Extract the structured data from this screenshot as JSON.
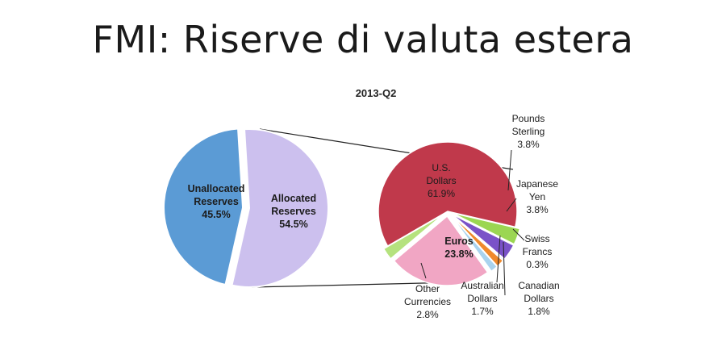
{
  "title": "FMI: Riserve di valuta estera",
  "chart_data": {
    "type": "pie",
    "subtitle": "2013-Q2",
    "main_pie": {
      "slices": [
        {
          "label_lines": [
            "Unallocated",
            "Reserves",
            "45.5%"
          ],
          "value": 45.5,
          "color": "#5b9bd5"
        },
        {
          "label_lines": [
            "Allocated",
            "Reserves",
            "54.5%"
          ],
          "value": 54.5,
          "color": "#ccc0ee"
        }
      ]
    },
    "detail_pie": {
      "slices": [
        {
          "label_lines": [
            "U.S.",
            "Dollars",
            "61.9%"
          ],
          "value": 61.9,
          "color": "#c0394b"
        },
        {
          "label_lines": [
            "Pounds",
            "Sterling",
            "3.8%"
          ],
          "value": 3.8,
          "color": "#9bd652"
        },
        {
          "label_lines": [
            "Japanese",
            "Yen",
            "3.8%"
          ],
          "value": 3.8,
          "color": "#7a52c8"
        },
        {
          "label_lines": [
            "Swiss",
            "Francs",
            "0.3%"
          ],
          "value": 0.3,
          "color": "#3a5f9a"
        },
        {
          "label_lines": [
            "Canadian",
            "Dollars",
            "1.8%"
          ],
          "value": 1.8,
          "color": "#f08a2c"
        },
        {
          "label_lines": [
            "Australian",
            "Dollars",
            "1.7%"
          ],
          "value": 1.7,
          "color": "#a9d3ee"
        },
        {
          "label_lines": [
            "Euros",
            "23.8%"
          ],
          "value": 23.8,
          "color": "#f1a6c4"
        },
        {
          "label_lines": [
            "Other",
            "Currencies",
            "2.8%"
          ],
          "value": 2.8,
          "color": "#b5e27e"
        }
      ]
    }
  }
}
